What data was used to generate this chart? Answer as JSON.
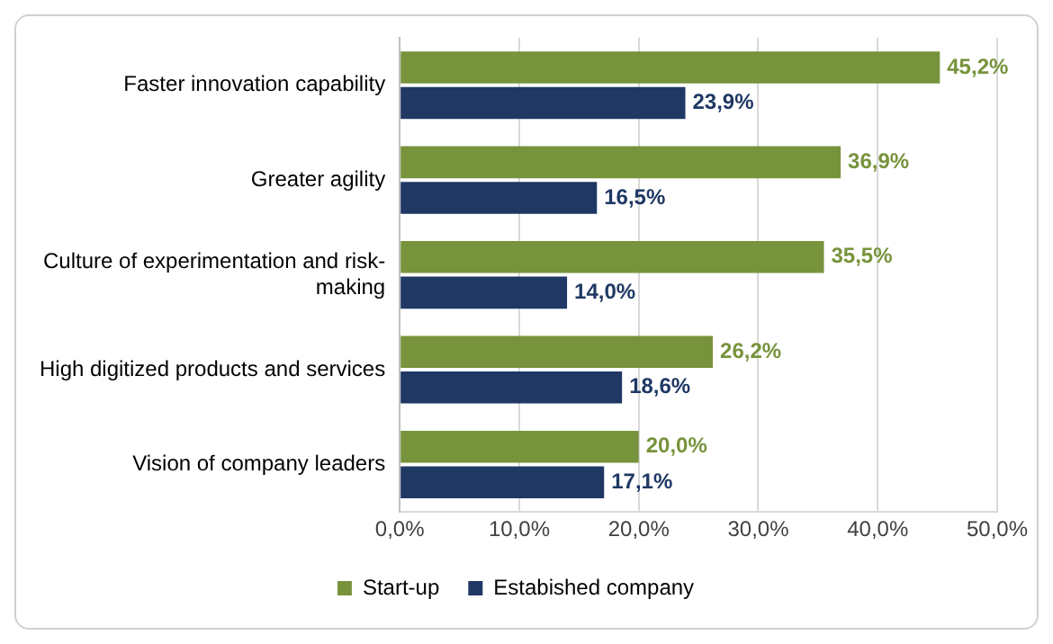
{
  "chart_data": {
    "type": "bar",
    "orientation": "horizontal",
    "categories": [
      "Faster innovation capability",
      "Greater agility",
      "Culture of experimentation and risk-making",
      "High digitized products and services",
      "Vision of company leaders"
    ],
    "series": [
      {
        "name": "Start-up",
        "color": "#77933c",
        "values": [
          45.2,
          36.9,
          35.5,
          26.2,
          20.0
        ],
        "value_labels": [
          "45,2%",
          "36,9%",
          "35,5%",
          "26,2%",
          "20,0%"
        ]
      },
      {
        "name": "Estabished company",
        "color": "#1f3864",
        "values": [
          23.9,
          16.5,
          14.0,
          18.6,
          17.1
        ],
        "value_labels": [
          "23,9%",
          "16,5%",
          "14,0%",
          "18,6%",
          "17,1%"
        ]
      }
    ],
    "xlim": [
      0,
      50
    ],
    "xticks": [
      {
        "value": 0,
        "label": "0,0%"
      },
      {
        "value": 10,
        "label": "10,0%"
      },
      {
        "value": 20,
        "label": "20,0%"
      },
      {
        "value": 30,
        "label": "30,0%"
      },
      {
        "value": 40,
        "label": "40,0%"
      },
      {
        "value": 50,
        "label": "50,0%"
      }
    ],
    "grid": "x",
    "legend": "bottom"
  }
}
